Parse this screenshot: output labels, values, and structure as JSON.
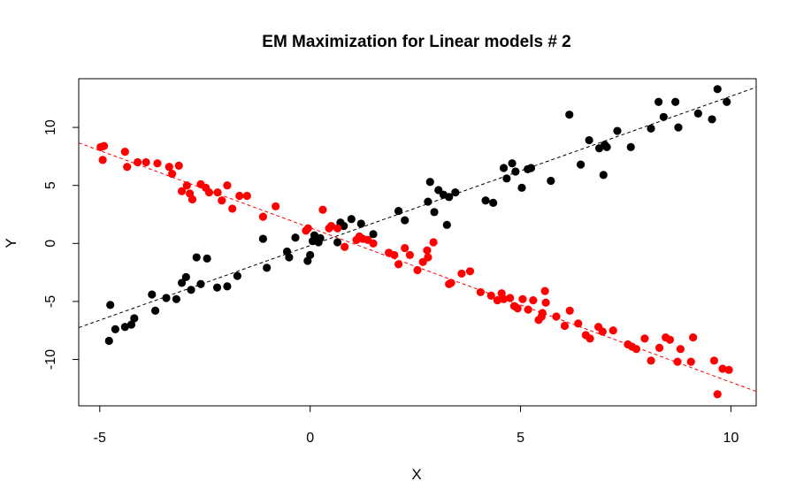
{
  "chart_data": {
    "type": "scatter",
    "title": "EM Maximization for Linear models # 2",
    "xlabel": "X",
    "ylabel": "Y",
    "xlim": [
      -5.5,
      10.6
    ],
    "ylim": [
      -14.0,
      14.2
    ],
    "x_ticks": [
      -5,
      0,
      5,
      10
    ],
    "y_ticks": [
      -10,
      -5,
      0,
      5,
      10
    ],
    "grid": false,
    "legend": "none",
    "series": [
      {
        "color": "#000000",
        "fit_line": {
          "slope": 1.287,
          "intercept": -0.18,
          "style": "dashed",
          "color": "#000000"
        },
        "points": [
          [
            -4.78,
            -8.4
          ],
          [
            -4.75,
            -5.3
          ],
          [
            -4.63,
            -7.4
          ],
          [
            -4.4,
            -7.2
          ],
          [
            -4.25,
            -7.0
          ],
          [
            -4.18,
            -6.45
          ],
          [
            -3.76,
            -4.4
          ],
          [
            -3.68,
            -5.8
          ],
          [
            -3.42,
            -4.7
          ],
          [
            -3.18,
            -4.8
          ],
          [
            -3.05,
            -3.4
          ],
          [
            -2.95,
            -2.9
          ],
          [
            -2.83,
            -4.0
          ],
          [
            -2.7,
            -1.2
          ],
          [
            -2.6,
            -3.5
          ],
          [
            -2.45,
            -1.3
          ],
          [
            -2.21,
            -3.8
          ],
          [
            -1.97,
            -3.7
          ],
          [
            -1.73,
            -2.8
          ],
          [
            -1.12,
            0.4
          ],
          [
            -1.03,
            -2.1
          ],
          [
            -0.55,
            -0.7
          ],
          [
            -0.5,
            -1.2
          ],
          [
            -0.35,
            0.5
          ],
          [
            -0.06,
            -1.5
          ],
          [
            0.0,
            -1.0
          ],
          [
            0.06,
            0.2
          ],
          [
            0.1,
            0.7
          ],
          [
            0.15,
            0.4
          ],
          [
            0.2,
            0.1
          ],
          [
            0.24,
            0.45
          ],
          [
            0.65,
            0.1
          ],
          [
            0.72,
            1.8
          ],
          [
            0.8,
            1.5
          ],
          [
            0.98,
            2.1
          ],
          [
            1.21,
            1.7
          ],
          [
            1.5,
            0.8
          ],
          [
            2.1,
            2.8
          ],
          [
            2.25,
            2.0
          ],
          [
            2.8,
            3.6
          ],
          [
            2.85,
            5.3
          ],
          [
            2.95,
            2.7
          ],
          [
            3.05,
            4.6
          ],
          [
            3.17,
            4.2
          ],
          [
            3.25,
            1.6
          ],
          [
            3.3,
            4.0
          ],
          [
            3.45,
            4.4
          ],
          [
            4.17,
            3.7
          ],
          [
            4.35,
            3.5
          ],
          [
            4.6,
            6.5
          ],
          [
            4.67,
            5.6
          ],
          [
            4.8,
            6.9
          ],
          [
            4.88,
            6.2
          ],
          [
            5.03,
            4.8
          ],
          [
            5.17,
            6.4
          ],
          [
            5.25,
            6.5
          ],
          [
            5.72,
            5.4
          ],
          [
            6.16,
            11.1
          ],
          [
            6.43,
            6.8
          ],
          [
            6.63,
            8.9
          ],
          [
            6.87,
            8.2
          ],
          [
            6.97,
            5.9
          ],
          [
            7.0,
            8.5
          ],
          [
            7.05,
            8.3
          ],
          [
            7.3,
            9.7
          ],
          [
            7.62,
            8.3
          ],
          [
            8.1,
            9.9
          ],
          [
            8.28,
            12.2
          ],
          [
            8.4,
            10.9
          ],
          [
            8.68,
            12.2
          ],
          [
            8.75,
            10.0
          ],
          [
            9.22,
            11.2
          ],
          [
            9.55,
            10.7
          ],
          [
            9.68,
            13.3
          ],
          [
            9.9,
            12.2
          ]
        ]
      },
      {
        "color": "#ff0000",
        "fit_line": {
          "slope": -1.331,
          "intercept": 1.35,
          "style": "dashed",
          "color": "#ff0000"
        },
        "points": [
          [
            -4.98,
            8.3
          ],
          [
            -4.9,
            8.4
          ],
          [
            -4.93,
            7.2
          ],
          [
            -4.4,
            7.9
          ],
          [
            -4.35,
            6.6
          ],
          [
            -4.1,
            7.0
          ],
          [
            -3.9,
            7.0
          ],
          [
            -3.63,
            6.9
          ],
          [
            -3.35,
            6.6
          ],
          [
            -3.28,
            6.0
          ],
          [
            -3.12,
            6.7
          ],
          [
            -3.05,
            4.5
          ],
          [
            -2.93,
            5.0
          ],
          [
            -2.86,
            4.3
          ],
          [
            -2.8,
            3.8
          ],
          [
            -2.6,
            5.1
          ],
          [
            -2.48,
            4.8
          ],
          [
            -2.4,
            4.4
          ],
          [
            -2.2,
            4.4
          ],
          [
            -2.1,
            3.7
          ],
          [
            -1.97,
            5.0
          ],
          [
            -1.85,
            3.0
          ],
          [
            -1.68,
            4.1
          ],
          [
            -1.5,
            4.1
          ],
          [
            -1.12,
            2.3
          ],
          [
            -0.82,
            3.2
          ],
          [
            -0.1,
            1.1
          ],
          [
            -0.05,
            1.3
          ],
          [
            0.3,
            2.9
          ],
          [
            0.45,
            1.3
          ],
          [
            0.5,
            1.5
          ],
          [
            0.65,
            1.3
          ],
          [
            0.82,
            -0.3
          ],
          [
            1.1,
            0.3
          ],
          [
            1.17,
            0.6
          ],
          [
            1.25,
            0.4
          ],
          [
            1.37,
            0.3
          ],
          [
            1.5,
            0.0
          ],
          [
            1.87,
            -0.8
          ],
          [
            2.0,
            -1.0
          ],
          [
            2.1,
            -1.8
          ],
          [
            2.25,
            -0.4
          ],
          [
            2.37,
            -1.0
          ],
          [
            2.55,
            -2.3
          ],
          [
            2.68,
            -1.6
          ],
          [
            2.78,
            -0.6
          ],
          [
            2.8,
            -1.2
          ],
          [
            2.93,
            0.1
          ],
          [
            3.3,
            -3.5
          ],
          [
            3.35,
            -3.4
          ],
          [
            3.6,
            -2.6
          ],
          [
            3.8,
            -2.4
          ],
          [
            4.05,
            -4.2
          ],
          [
            4.3,
            -4.5
          ],
          [
            4.45,
            -4.9
          ],
          [
            4.55,
            -4.3
          ],
          [
            4.6,
            -4.8
          ],
          [
            4.75,
            -4.7
          ],
          [
            4.85,
            -5.4
          ],
          [
            4.93,
            -5.6
          ],
          [
            5.05,
            -4.8
          ],
          [
            5.18,
            -5.7
          ],
          [
            5.3,
            -4.9
          ],
          [
            5.43,
            -6.6
          ],
          [
            5.5,
            -6.3
          ],
          [
            5.52,
            -6.0
          ],
          [
            5.58,
            -4.1
          ],
          [
            5.6,
            -5.1
          ],
          [
            5.85,
            -6.3
          ],
          [
            6.05,
            -7.1
          ],
          [
            6.17,
            -5.8
          ],
          [
            6.37,
            -6.9
          ],
          [
            6.55,
            -7.9
          ],
          [
            6.65,
            -8.2
          ],
          [
            6.85,
            -7.2
          ],
          [
            6.95,
            -7.6
          ],
          [
            7.2,
            -7.5
          ],
          [
            7.55,
            -8.7
          ],
          [
            7.65,
            -8.9
          ],
          [
            7.75,
            -9.1
          ],
          [
            7.95,
            -8.2
          ],
          [
            8.1,
            -10.1
          ],
          [
            8.3,
            -9.0
          ],
          [
            8.45,
            -8.1
          ],
          [
            8.55,
            -8.3
          ],
          [
            8.73,
            -10.2
          ],
          [
            8.8,
            -9.1
          ],
          [
            9.05,
            -10.2
          ],
          [
            9.1,
            -8.1
          ],
          [
            9.6,
            -10.1
          ],
          [
            9.68,
            -13.0
          ],
          [
            9.8,
            -10.8
          ],
          [
            9.95,
            -10.9
          ]
        ]
      }
    ]
  }
}
